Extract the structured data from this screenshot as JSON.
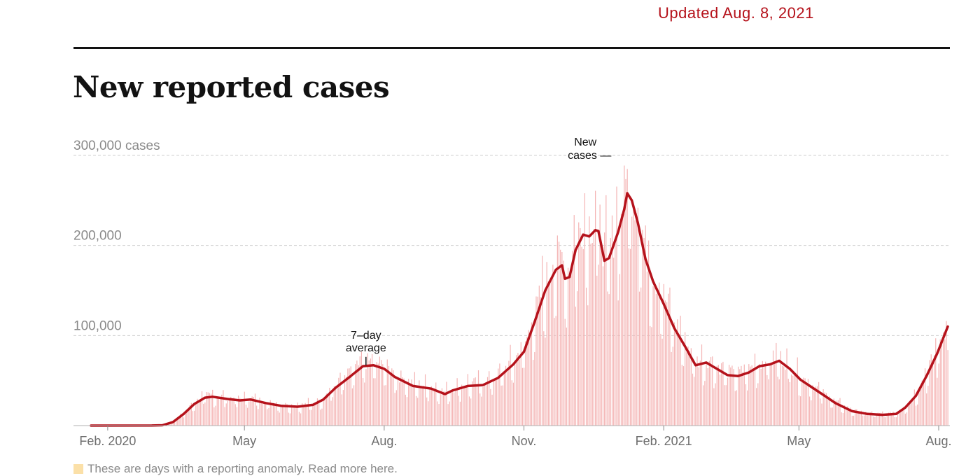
{
  "header": {
    "updated": "Updated Aug. 8, 2021",
    "title": "New reported cases"
  },
  "footnote": {
    "text": "These are days with a reporting anomaly. Read more here."
  },
  "colors": {
    "line": "#b5121b",
    "bars": "#f4b4b4",
    "anomaly": "#fbe0a8",
    "accent": "#b5121b"
  },
  "chart_data": {
    "type": "bar",
    "title": "New reported cases",
    "x_start": "2020-01-21",
    "x_end": "2021-08-07",
    "ylim": [
      0,
      300000
    ],
    "yticks": [
      {
        "value": 300000,
        "label": "300,000 cases"
      },
      {
        "value": 200000,
        "label": "200,000"
      },
      {
        "value": 100000,
        "label": "100,000"
      }
    ],
    "xticks": [
      {
        "date": "2020-02-01",
        "label": "Feb. 2020"
      },
      {
        "date": "2020-05-01",
        "label": "May"
      },
      {
        "date": "2020-08-01",
        "label": "Aug."
      },
      {
        "date": "2020-11-01",
        "label": "Nov."
      },
      {
        "date": "2021-02-01",
        "label": "Feb. 2021"
      },
      {
        "date": "2021-05-01",
        "label": "May"
      },
      {
        "date": "2021-08-01",
        "label": "Aug."
      }
    ],
    "grid": true,
    "annotations": [
      {
        "label_lines": [
          "7–day",
          "average"
        ],
        "date": "2020-07-20",
        "value": 67000
      },
      {
        "label_lines": [
          "New",
          "cases —"
        ],
        "date": "2020-12-28",
        "value": 300000
      }
    ],
    "series": [
      {
        "name": "7-day average",
        "kind": "line",
        "points": [
          [
            "2020-01-21",
            0
          ],
          [
            "2020-03-01",
            100
          ],
          [
            "2020-03-08",
            400
          ],
          [
            "2020-03-15",
            4000
          ],
          [
            "2020-03-22",
            13000
          ],
          [
            "2020-03-29",
            24000
          ],
          [
            "2020-04-05",
            31000
          ],
          [
            "2020-04-10",
            32000
          ],
          [
            "2020-04-20",
            29500
          ],
          [
            "2020-04-28",
            28000
          ],
          [
            "2020-05-05",
            29000
          ],
          [
            "2020-05-15",
            25000
          ],
          [
            "2020-05-25",
            22000
          ],
          [
            "2020-06-05",
            21000
          ],
          [
            "2020-06-15",
            23000
          ],
          [
            "2020-06-22",
            29000
          ],
          [
            "2020-06-30",
            42000
          ],
          [
            "2020-07-10",
            55000
          ],
          [
            "2020-07-18",
            66000
          ],
          [
            "2020-07-25",
            67000
          ],
          [
            "2020-08-01",
            63000
          ],
          [
            "2020-08-08",
            54000
          ],
          [
            "2020-08-20",
            44000
          ],
          [
            "2020-09-01",
            41000
          ],
          [
            "2020-09-10",
            35000
          ],
          [
            "2020-09-15",
            39000
          ],
          [
            "2020-09-25",
            44000
          ],
          [
            "2020-10-05",
            45000
          ],
          [
            "2020-10-15",
            53000
          ],
          [
            "2020-10-25",
            68000
          ],
          [
            "2020-11-01",
            82000
          ],
          [
            "2020-11-08",
            115000
          ],
          [
            "2020-11-15",
            150000
          ],
          [
            "2020-11-22",
            173000
          ],
          [
            "2020-11-26",
            178000
          ],
          [
            "2020-11-28",
            163000
          ],
          [
            "2020-12-01",
            165000
          ],
          [
            "2020-12-05",
            195000
          ],
          [
            "2020-12-10",
            212000
          ],
          [
            "2020-12-14",
            210000
          ],
          [
            "2020-12-18",
            217000
          ],
          [
            "2020-12-20",
            216000
          ],
          [
            "2020-12-24",
            183000
          ],
          [
            "2020-12-27",
            186000
          ],
          [
            "2021-01-02",
            215000
          ],
          [
            "2021-01-06",
            240000
          ],
          [
            "2021-01-08",
            258000
          ],
          [
            "2021-01-11",
            250000
          ],
          [
            "2021-01-15",
            225000
          ],
          [
            "2021-01-20",
            185000
          ],
          [
            "2021-01-25",
            160000
          ],
          [
            "2021-02-01",
            135000
          ],
          [
            "2021-02-08",
            108000
          ],
          [
            "2021-02-15",
            88000
          ],
          [
            "2021-02-22",
            67000
          ],
          [
            "2021-03-01",
            70000
          ],
          [
            "2021-03-08",
            63000
          ],
          [
            "2021-03-15",
            56000
          ],
          [
            "2021-03-22",
            55000
          ],
          [
            "2021-03-29",
            59000
          ],
          [
            "2021-04-05",
            66000
          ],
          [
            "2021-04-12",
            68000
          ],
          [
            "2021-04-18",
            72000
          ],
          [
            "2021-04-25",
            63000
          ],
          [
            "2021-05-02",
            51000
          ],
          [
            "2021-05-10",
            42000
          ],
          [
            "2021-05-18",
            33000
          ],
          [
            "2021-05-25",
            25000
          ],
          [
            "2021-06-05",
            16000
          ],
          [
            "2021-06-15",
            13000
          ],
          [
            "2021-06-25",
            12000
          ],
          [
            "2021-07-04",
            13000
          ],
          [
            "2021-07-10",
            20000
          ],
          [
            "2021-07-17",
            33000
          ],
          [
            "2021-07-24",
            55000
          ],
          [
            "2021-07-31",
            80000
          ],
          [
            "2021-08-07",
            110000
          ]
        ]
      }
    ]
  }
}
